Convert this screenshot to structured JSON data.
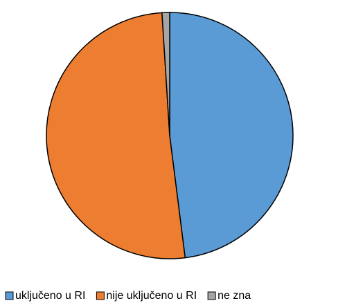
{
  "chart_data": {
    "type": "pie",
    "categories": [
      "uključeno u RI",
      "nije uključeno u RI",
      "ne zna"
    ],
    "values": [
      48,
      51,
      1
    ],
    "colors": [
      "#5b9bd5",
      "#ed7d31",
      "#a5a5a5"
    ],
    "legend": "bottom"
  }
}
